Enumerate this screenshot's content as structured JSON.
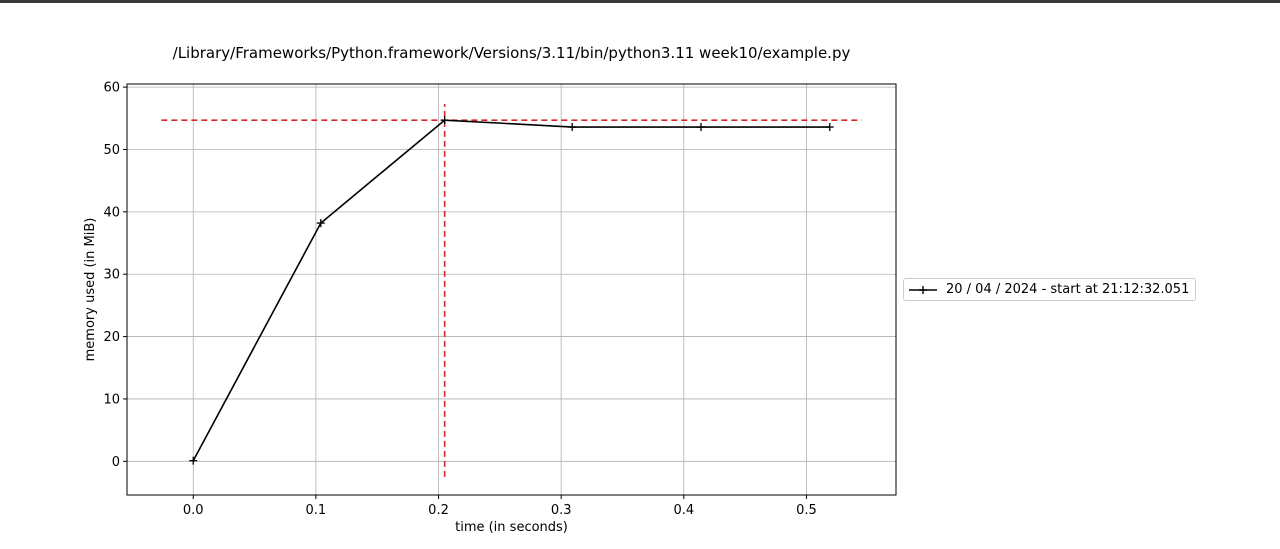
{
  "chart_data": {
    "type": "line",
    "title": "/Library/Frameworks/Python.framework/Versions/3.11/bin/python3.11 week10/example.py",
    "xlabel": "time (in seconds)",
    "ylabel": "memory used (in MiB)",
    "xlim": [
      -0.054,
      0.573
    ],
    "ylim": [
      -5.4,
      60.5
    ],
    "xticks": [
      0.0,
      0.1,
      0.2,
      0.3,
      0.4,
      0.5
    ],
    "xtick_labels": [
      "0.0",
      "0.1",
      "0.2",
      "0.3",
      "0.4",
      "0.5"
    ],
    "yticks": [
      0,
      10,
      20,
      30,
      40,
      50,
      60
    ],
    "ytick_labels": [
      "0",
      "10",
      "20",
      "30",
      "40",
      "50",
      "60"
    ],
    "grid": true,
    "legend_position": "outside-right",
    "series": [
      {
        "name": "20 / 04 / 2024 - start at 21:12:32.051",
        "color": "#000000",
        "marker": "plus",
        "x": [
          0.0,
          0.104,
          0.205,
          0.309,
          0.414,
          0.519
        ],
        "y": [
          0.1,
          38.2,
          54.7,
          53.6,
          53.6,
          53.6
        ]
      }
    ],
    "reference_lines": [
      {
        "orientation": "horizontal",
        "y": 54.7,
        "x_from": -0.026,
        "x_to": 0.545,
        "color": "#d62728",
        "style": "dashed"
      },
      {
        "orientation": "vertical",
        "x": 0.205,
        "y_from": -2.5,
        "y_to": 57.3,
        "color": "#d62728",
        "style": "dashed"
      }
    ]
  }
}
